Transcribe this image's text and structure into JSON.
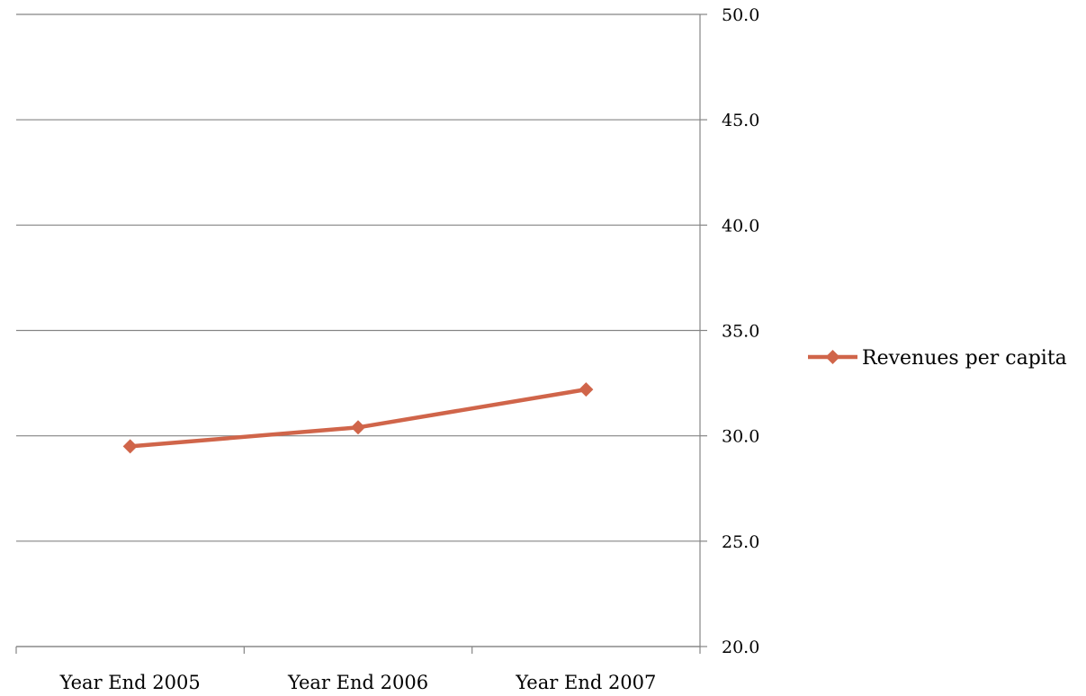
{
  "chart_data": {
    "type": "line",
    "categories": [
      "Year End 2005",
      "Year End 2006",
      "Year End 2007"
    ],
    "series": [
      {
        "name": "Revenues per capita",
        "values": [
          29.5,
          30.4,
          32.2
        ],
        "color": "#d0654a",
        "marker": "diamond"
      }
    ],
    "yticks": [
      "20.0",
      "25.0",
      "30.0",
      "35.0",
      "40.0",
      "45.0",
      "50.0"
    ],
    "ylim": [
      20,
      50
    ],
    "y_axis_side": "right",
    "grid": true,
    "legend_position": "right",
    "title": "",
    "xlabel": "",
    "ylabel": ""
  }
}
